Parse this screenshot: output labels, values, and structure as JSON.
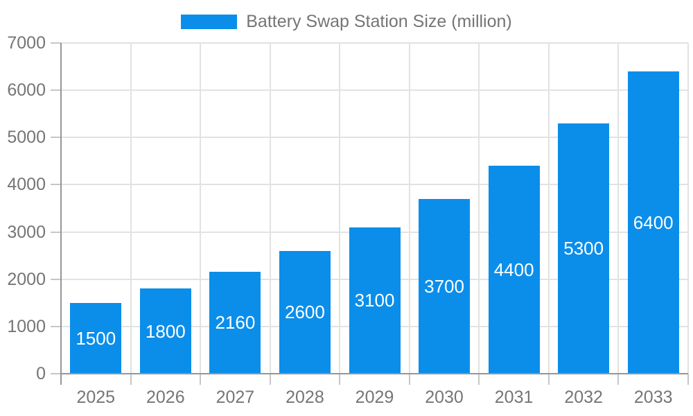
{
  "legend": {
    "label": "Battery Swap Station Size (million)"
  },
  "chart_data": {
    "type": "bar",
    "title": "Battery Swap Station Size (million)",
    "series_name": "Battery Swap Station Size (million)",
    "categories": [
      "2025",
      "2026",
      "2027",
      "2028",
      "2029",
      "2030",
      "2031",
      "2032",
      "2033"
    ],
    "values": [
      1500,
      1800,
      2160,
      2600,
      3100,
      3700,
      4400,
      5300,
      6400
    ],
    "value_labels": [
      "1500",
      "1800",
      "2160",
      "2600",
      "3100",
      "3700",
      "4400",
      "5300",
      "6400"
    ],
    "xlabel": "",
    "ylabel": "",
    "ylim": [
      0,
      7000
    ],
    "yticks": [
      0,
      1000,
      2000,
      3000,
      4000,
      5000,
      6000,
      7000
    ],
    "ytick_labels": [
      "0",
      "1000",
      "2000",
      "3000",
      "4000",
      "5000",
      "6000",
      "7000"
    ],
    "grid": true,
    "legend_position": "top",
    "colors": {
      "bar": "#0b8eea",
      "value_label": "#ffffff",
      "axis_label": "#757575",
      "gridline": "#e2e2e2",
      "tick": "#c6c6c6",
      "axis_line": "#969696",
      "background": "#ffffff"
    }
  }
}
